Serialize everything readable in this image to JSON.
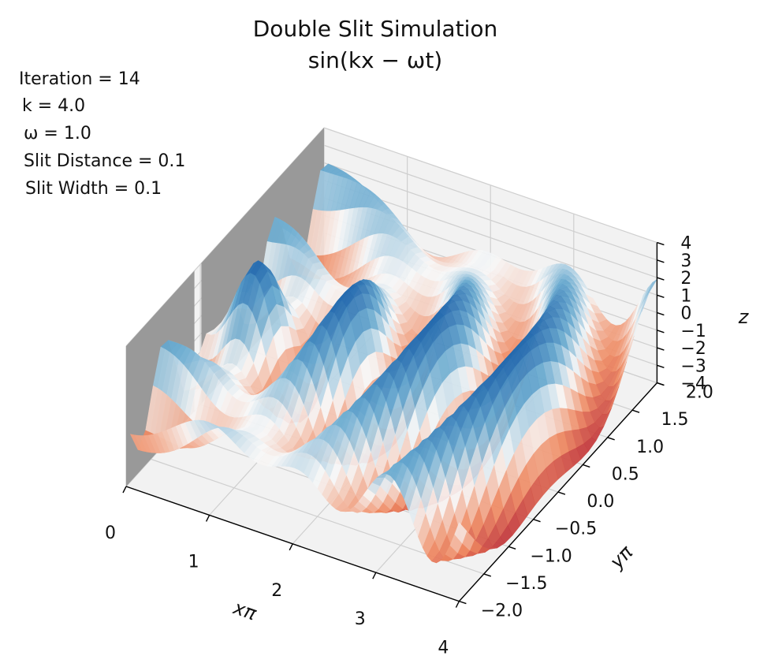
{
  "chart_data": {
    "type": "surface3d",
    "title": "Double Slit Simulation",
    "subtitle": "sin(kx − ωt)",
    "info_lines": [
      "Iteration = 14",
      "k = 4.0",
      "ω = 1.0",
      "Slit Distance = 0.1",
      "Slit Width = 0.1"
    ],
    "parameters": {
      "iteration": 14,
      "k": 4.0,
      "omega": 1.0,
      "slit_distance": 0.1,
      "slit_width": 0.1
    },
    "xlabel": "xπ",
    "ylabel": "yπ",
    "zlabel": "z",
    "xlim": [
      0,
      4
    ],
    "ylim": [
      -2.0,
      2.0
    ],
    "zlim": [
      -4,
      4
    ],
    "x_ticks": [
      0,
      1,
      2,
      3,
      4
    ],
    "x_tick_labels": [
      "0",
      "1",
      "2",
      "3",
      "4"
    ],
    "y_ticks": [
      -2.0,
      -1.5,
      -1.0,
      -0.5,
      0.0,
      0.5,
      1.0,
      1.5,
      2.0
    ],
    "y_tick_labels": [
      "−2.0",
      "−1.5",
      "−1.0",
      "−0.5",
      "0.0",
      "0.5",
      "1.0",
      "1.5",
      "2.0"
    ],
    "z_ticks": [
      -4,
      -3,
      -2,
      -1,
      0,
      1,
      2,
      3,
      4
    ],
    "z_tick_labels": [
      "−4",
      "−3",
      "−2",
      "−1",
      "0",
      "1",
      "2",
      "3",
      "4"
    ],
    "colormap": "RdBu",
    "colors": {
      "low": "#b2182b",
      "mid": "#f7f7f7",
      "high": "#2166ac",
      "barrier": "#999999",
      "pane": "#f2f2f2",
      "grid": "#cfcfcf"
    },
    "barrier": {
      "x": 0
    }
  }
}
